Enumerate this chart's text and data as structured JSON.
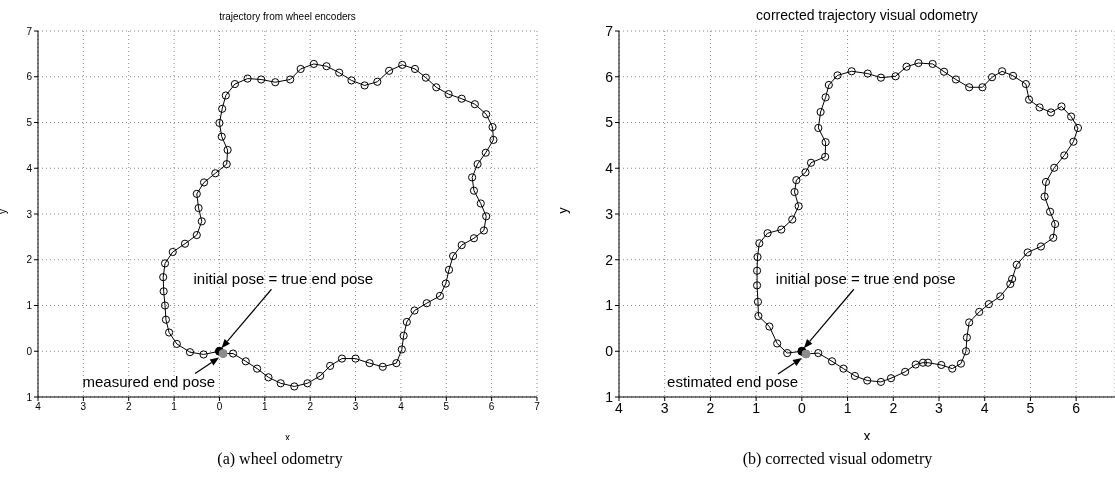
{
  "chart_data": [
    {
      "type": "line",
      "title": "trajectory from wheel encoders",
      "xlabel": "x",
      "ylabel": "y",
      "xlim": [
        -4,
        7
      ],
      "ylim": [
        -1,
        7
      ],
      "xticks": [
        {
          "value": -4,
          "label": "4"
        },
        {
          "value": -3,
          "label": "3"
        },
        {
          "value": -2,
          "label": "2"
        },
        {
          "value": -1,
          "label": "1"
        },
        0,
        1,
        2,
        3,
        4,
        5,
        6,
        7
      ],
      "yticks": [
        {
          "value": -1,
          "label": "1"
        },
        0,
        1,
        2,
        3,
        4,
        5,
        6,
        7
      ],
      "grid": true,
      "marker": "circle",
      "line_style": "solid",
      "series": [
        {
          "type": "line",
          "color": "#000000",
          "x": [
            0,
            -0.35,
            -0.65,
            -0.94,
            -1.11,
            -1.18,
            -1.2,
            -1.23,
            -1.24,
            -1.2,
            -1.03,
            -0.76,
            -0.5,
            -0.39,
            -0.46,
            -0.5,
            -0.34,
            -0.09,
            0.16,
            0.18,
            0.05,
            0,
            0.06,
            0.14,
            0.34,
            0.62,
            0.92,
            1.23,
            1.56,
            1.79,
            2.08,
            2.36,
            2.64,
            2.91,
            3.2,
            3.48,
            3.74,
            4.03,
            4.31,
            4.55,
            4.78,
            5.05,
            5.34,
            5.63,
            5.88,
            6.02,
            6.04,
            5.87,
            5.69,
            5.57,
            5.61,
            5.76,
            5.88,
            5.83,
            5.61,
            5.34,
            5.15,
            5.06,
            4.99,
            4.86,
            4.57,
            4.3,
            4.13,
            4.06,
            4.02,
            3.9,
            3.6,
            3.31,
            3,
            2.7,
            2.44,
            2.22,
            1.94,
            1.65,
            1.35,
            1.08,
            0.83,
            0.58,
            0.3,
            0.08
          ],
          "values": [
            0,
            -0.07,
            -0.02,
            0.16,
            0.41,
            0.69,
            1,
            1.31,
            1.62,
            1.92,
            2.17,
            2.35,
            2.54,
            2.84,
            3.13,
            3.44,
            3.69,
            3.89,
            4.09,
            4.4,
            4.69,
            4.99,
            5.3,
            5.59,
            5.84,
            5.96,
            5.94,
            5.88,
            5.94,
            6.17,
            6.28,
            6.23,
            6.09,
            5.92,
            5.81,
            5.89,
            6.13,
            6.26,
            6.17,
            5.98,
            5.77,
            5.62,
            5.52,
            5.4,
            5.18,
            4.9,
            4.62,
            4.34,
            4.09,
            3.8,
            3.51,
            3.23,
            2.95,
            2.64,
            2.47,
            2.32,
            2.08,
            1.78,
            1.48,
            1.21,
            1.05,
            0.89,
            0.64,
            0.34,
            0.04,
            -0.26,
            -0.34,
            -0.26,
            -0.16,
            -0.16,
            -0.32,
            -0.54,
            -0.7,
            -0.77,
            -0.7,
            -0.57,
            -0.38,
            -0.22,
            -0.05,
            -0.05
          ]
        },
        {
          "type": "scatter",
          "color": "#000000",
          "x": [
            0
          ],
          "values": [
            0
          ]
        },
        {
          "type": "scatter",
          "color": "#8c8c8c",
          "x": [
            0.08
          ],
          "values": [
            -0.05
          ]
        }
      ],
      "annotations": [
        "initial pose = true end pose",
        {
          "text": "measured end pose",
          "x": 0.08,
          "y": -0.05
        },
        "(a) wheel odometry"
      ]
    },
    {
      "type": "line",
      "title": "corrected trajectory visual odometry",
      "xlabel": "x",
      "ylabel": "y",
      "xlim": [
        -4,
        6.85
      ],
      "ylim": [
        -1,
        7
      ],
      "xticks": [
        {
          "value": -4,
          "label": "4"
        },
        {
          "value": -3,
          "label": "3"
        },
        {
          "value": -2,
          "label": "2"
        },
        {
          "value": -1,
          "label": "1"
        },
        0,
        1,
        2,
        3,
        4,
        5,
        6
      ],
      "yticks": [
        {
          "value": -1,
          "label": "1"
        },
        0,
        1,
        2,
        3,
        4,
        5,
        6,
        7
      ],
      "grid": true,
      "marker": "circle",
      "line_style": "solid",
      "series": [
        {
          "type": "line",
          "color": "#000000",
          "x": [
            0,
            -0.32,
            -0.54,
            -0.71,
            -0.95,
            -0.96,
            -0.98,
            -0.98,
            -0.97,
            -0.93,
            -0.75,
            -0.45,
            -0.21,
            -0.07,
            -0.16,
            -0.12,
            0.08,
            0.2,
            0.51,
            0.52,
            0.36,
            0.41,
            0.52,
            0.59,
            0.78,
            1.09,
            1.44,
            1.73,
            2.05,
            2.29,
            2.55,
            2.86,
            3.11,
            3.37,
            3.66,
            3.95,
            4.16,
            4.38,
            4.62,
            4.9,
            4.97,
            5.2,
            5.45,
            5.68,
            5.89,
            6.04,
            5.94,
            5.74,
            5.52,
            5.34,
            5.31,
            5.43,
            5.54,
            5.5,
            5.23,
            4.94,
            4.7,
            4.6,
            4.56,
            4.34,
            4.09,
            3.88,
            3.66,
            3.61,
            3.59,
            3.48,
            3.29,
            3.05,
            2.76,
            2.65,
            2.49,
            2.26,
            1.95,
            1.73,
            1.43,
            1.16,
            0.91,
            0.66,
            0.36,
            0.09
          ],
          "values": [
            0,
            -0.04,
            0.17,
            0.54,
            0.77,
            1.08,
            1.44,
            1.76,
            2.06,
            2.36,
            2.58,
            2.66,
            2.88,
            3.17,
            3.48,
            3.74,
            3.91,
            4.12,
            4.25,
            4.57,
            4.88,
            5.23,
            5.55,
            5.82,
            6.03,
            6.12,
            6.07,
            5.98,
            6.01,
            6.22,
            6.3,
            6.28,
            6.11,
            5.94,
            5.77,
            5.77,
            5.99,
            6.12,
            6.02,
            5.84,
            5.5,
            5.33,
            5.22,
            5.35,
            5.13,
            4.88,
            4.58,
            4.28,
            4.01,
            3.7,
            3.38,
            3.05,
            2.78,
            2.48,
            2.29,
            2.16,
            1.89,
            1.58,
            1.47,
            1.2,
            1.03,
            0.86,
            0.63,
            0.3,
            0,
            -0.27,
            -0.38,
            -0.3,
            -0.25,
            -0.25,
            -0.29,
            -0.45,
            -0.59,
            -0.67,
            -0.64,
            -0.54,
            -0.38,
            -0.22,
            -0.04,
            -0.06
          ]
        },
        {
          "type": "scatter",
          "color": "#000000",
          "x": [
            0
          ],
          "values": [
            0
          ]
        },
        {
          "type": "scatter",
          "color": "#8c8c8c",
          "x": [
            0.09
          ],
          "values": [
            -0.06
          ]
        }
      ],
      "annotations": [
        "initial pose = true end pose",
        {
          "text": "estimated end pose",
          "x": 0.09,
          "y": -0.06
        },
        "(b) corrected visual odometry"
      ]
    }
  ]
}
